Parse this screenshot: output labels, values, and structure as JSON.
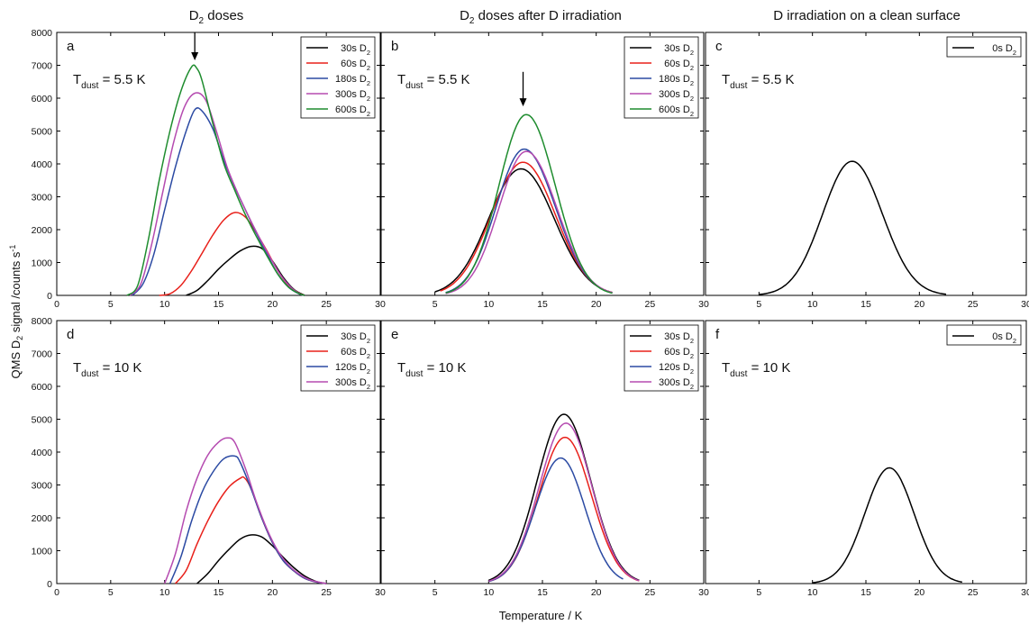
{
  "figure": {
    "xlabel": "Temperature / K",
    "ylabel": "QMS D2 signal /counts s-1",
    "column_titles": [
      "D2 doses",
      "D2 doses after D irradiation",
      "D irradiation on a clean surface"
    ],
    "colors": {
      "black": "#000000",
      "red": "#e8201a",
      "blue": "#2b4aa3",
      "magenta": "#b54bb0",
      "green": "#1e8c2e"
    }
  },
  "chart_data": [
    {
      "type": "line",
      "panel": "a",
      "annotation": "Tdust = 5.5 K",
      "xlim": [
        0,
        30
      ],
      "ylim": [
        0,
        8000
      ],
      "xticks": [
        0,
        5,
        10,
        15,
        20,
        25,
        30
      ],
      "yticks": [
        0,
        1000,
        2000,
        3000,
        4000,
        5000,
        6000,
        7000,
        8000
      ],
      "arrow_at": {
        "x": 12.8,
        "y_from": 8000,
        "y_to": 7150
      },
      "series": [
        {
          "name": "30s D2",
          "color": "#000000",
          "x": [
            12.0,
            13,
            14,
            15,
            16,
            17,
            18,
            19,
            20,
            21,
            22,
            23
          ],
          "y": [
            0,
            150,
            450,
            800,
            1100,
            1350,
            1490,
            1430,
            1050,
            550,
            180,
            0
          ]
        },
        {
          "name": "60s D2",
          "color": "#e8201a",
          "x": [
            9.5,
            10.5,
            11.5,
            12.5,
            13.5,
            14.5,
            15.5,
            16.5,
            17.5,
            18.5,
            19.5,
            20.5,
            21.5,
            22.5,
            23
          ],
          "y": [
            0,
            50,
            300,
            750,
            1300,
            1850,
            2300,
            2520,
            2380,
            1900,
            1350,
            750,
            300,
            60,
            0
          ]
        },
        {
          "name": "180s D2",
          "color": "#2b4aa3",
          "x": [
            7.0,
            8,
            9,
            10,
            11,
            12,
            12.8,
            13.5,
            14.5,
            15.5,
            16.5,
            17.5,
            18.5,
            19.5,
            20.5,
            21.5,
            22.5,
            23
          ],
          "y": [
            0,
            350,
            1250,
            2600,
            3900,
            5000,
            5650,
            5600,
            5050,
            4100,
            3300,
            2600,
            1900,
            1250,
            650,
            250,
            40,
            0
          ]
        },
        {
          "name": "300s D2",
          "color": "#b54bb0",
          "x": [
            6.8,
            7.8,
            8.8,
            9.8,
            10.8,
            11.8,
            12.8,
            13.8,
            14.8,
            15.8,
            16.8,
            17.8,
            18.8,
            19.8,
            20.8,
            21.8,
            22.6,
            23
          ],
          "y": [
            0,
            350,
            1550,
            3100,
            4600,
            5700,
            6150,
            5950,
            5000,
            3900,
            3100,
            2400,
            1750,
            1150,
            600,
            220,
            40,
            0
          ]
        },
        {
          "name": "600s D2",
          "color": "#1e8c2e",
          "x": [
            6.5,
            7.5,
            8.5,
            9.5,
            10.5,
            11.5,
            12.5,
            13.0,
            13.5,
            14.5,
            15.5,
            16.5,
            17.5,
            18.5,
            19.5,
            20.5,
            21.5,
            22.5,
            23
          ],
          "y": [
            0,
            300,
            1700,
            3500,
            5000,
            6200,
            6950,
            6900,
            6500,
            5200,
            4000,
            3200,
            2450,
            1800,
            1200,
            650,
            250,
            50,
            0
          ]
        }
      ]
    },
    {
      "type": "line",
      "panel": "b",
      "annotation": "Tdust = 5.5 K",
      "xlim": [
        0,
        30
      ],
      "ylim": [
        0,
        8000
      ],
      "xticks": [
        0,
        5,
        10,
        15,
        20,
        25,
        30
      ],
      "yticks": [
        0,
        1000,
        2000,
        3000,
        4000,
        5000,
        6000,
        7000,
        8000
      ],
      "arrow_at": {
        "x": 13.2,
        "y_from": 6800,
        "y_to": 5750
      },
      "series": [
        {
          "name": "30s D2",
          "color": "#000000",
          "peak_x": 13.0,
          "peak_y": 3850,
          "sigma_left": 3.0,
          "sigma_right": 3.1,
          "x_min": 5.0,
          "x_max": 21.5
        },
        {
          "name": "60s D2",
          "color": "#e8201a",
          "peak_x": 13.2,
          "peak_y": 4050,
          "sigma_left": 2.95,
          "sigma_right": 3.0,
          "x_min": 5.5,
          "x_max": 21.5
        },
        {
          "name": "180s D2",
          "color": "#2b4aa3",
          "peak_x": 13.3,
          "peak_y": 4450,
          "sigma_left": 2.6,
          "sigma_right": 2.9,
          "x_min": 6.0,
          "x_max": 21.5
        },
        {
          "name": "300s D2",
          "color": "#b54bb0",
          "peak_x": 13.5,
          "peak_y": 4380,
          "sigma_left": 2.55,
          "sigma_right": 2.85,
          "x_min": 6.0,
          "x_max": 21.5
        },
        {
          "name": "600s D2",
          "color": "#1e8c2e",
          "peak_x": 13.5,
          "peak_y": 5500,
          "sigma_left": 2.55,
          "sigma_right": 2.7,
          "x_min": 6.0,
          "x_max": 21.5
        }
      ]
    },
    {
      "type": "line",
      "panel": "c",
      "annotation": "Tdust = 5.5 K",
      "xlim": [
        0,
        30
      ],
      "ylim": [
        0,
        8000
      ],
      "xticks": [
        0,
        5,
        10,
        15,
        20,
        25,
        30
      ],
      "yticks": [
        0,
        1000,
        2000,
        3000,
        4000,
        5000,
        6000,
        7000,
        8000
      ],
      "series": [
        {
          "name": "0s D2",
          "color": "#000000",
          "peak_x": 13.7,
          "peak_y": 4080,
          "sigma_left": 2.75,
          "sigma_right": 2.85,
          "x_min": 5.0,
          "x_max": 22.5
        }
      ]
    },
    {
      "type": "line",
      "panel": "d",
      "annotation": "Tdust = 10 K",
      "xlim": [
        0,
        30
      ],
      "ylim": [
        0,
        8000
      ],
      "xticks": [
        0,
        5,
        10,
        15,
        20,
        25,
        30
      ],
      "yticks": [
        0,
        1000,
        2000,
        3000,
        4000,
        5000,
        6000,
        7000,
        8000
      ],
      "series": [
        {
          "name": "30s D2",
          "color": "#000000",
          "x": [
            13.0,
            14,
            15,
            16,
            17,
            18,
            19,
            20,
            21,
            22,
            23,
            24,
            25
          ],
          "y": [
            0,
            300,
            700,
            1050,
            1350,
            1480,
            1420,
            1150,
            800,
            480,
            230,
            70,
            0
          ]
        },
        {
          "name": "60s D2",
          "color": "#e8201a",
          "x": [
            11.0,
            12,
            13,
            14,
            15,
            16,
            17,
            17.4,
            18,
            19,
            20,
            21,
            22,
            23,
            24,
            25
          ],
          "y": [
            0,
            400,
            1200,
            1900,
            2500,
            2950,
            3200,
            3220,
            2900,
            2000,
            1250,
            700,
            380,
            160,
            50,
            0
          ]
        },
        {
          "name": "120s D2",
          "color": "#2b4aa3",
          "x": [
            10.5,
            11.5,
            12.5,
            13.5,
            14.5,
            15.5,
            16.5,
            17.0,
            18,
            19,
            20,
            21,
            22,
            23,
            24,
            25
          ],
          "y": [
            0,
            800,
            1900,
            2800,
            3400,
            3800,
            3880,
            3700,
            2900,
            2000,
            1250,
            700,
            380,
            160,
            50,
            0
          ]
        },
        {
          "name": "300s D2",
          "color": "#b54bb0",
          "x": [
            10.0,
            11,
            12,
            13,
            14,
            15,
            15.8,
            16.5,
            17.5,
            18.5,
            19.5,
            20.5,
            21.5,
            22.5,
            23.5,
            24.5,
            25
          ],
          "y": [
            0,
            900,
            2200,
            3200,
            3900,
            4300,
            4430,
            4300,
            3500,
            2500,
            1650,
            1000,
            560,
            280,
            110,
            30,
            0
          ]
        }
      ]
    },
    {
      "type": "line",
      "panel": "e",
      "annotation": "Tdust = 10 K",
      "xlim": [
        0,
        30
      ],
      "ylim": [
        0,
        8000
      ],
      "xticks": [
        0,
        5,
        10,
        15,
        20,
        25,
        30
      ],
      "yticks": [
        0,
        1000,
        2000,
        3000,
        4000,
        5000,
        6000,
        7000,
        8000
      ],
      "series": [
        {
          "name": "30s D2",
          "color": "#000000",
          "peak_x": 17.0,
          "peak_y": 5150,
          "sigma_left": 2.5,
          "sigma_right": 2.5,
          "x_min": 10.0,
          "x_max": 24.0
        },
        {
          "name": "60s D2",
          "color": "#e8201a",
          "peak_x": 17.1,
          "peak_y": 4450,
          "sigma_left": 2.45,
          "sigma_right": 2.45,
          "x_min": 10.0,
          "x_max": 24.0
        },
        {
          "name": "120s D2",
          "color": "#2b4aa3",
          "peak_x": 16.7,
          "peak_y": 3820,
          "sigma_left": 2.35,
          "sigma_right": 2.25,
          "x_min": 10.0,
          "x_max": 22.5
        },
        {
          "name": "300s D2",
          "color": "#b54bb0",
          "peak_x": 17.2,
          "peak_y": 4880,
          "sigma_left": 2.5,
          "sigma_right": 2.4,
          "x_min": 10.0,
          "x_max": 24.0
        }
      ]
    },
    {
      "type": "line",
      "panel": "f",
      "annotation": "Tdust = 10 K",
      "xlim": [
        0,
        30
      ],
      "ylim": [
        0,
        8000
      ],
      "xticks": [
        0,
        5,
        10,
        15,
        20,
        25,
        30
      ],
      "yticks": [
        0,
        1000,
        2000,
        3000,
        4000,
        5000,
        6000,
        7000,
        8000
      ],
      "series": [
        {
          "name": "0s D2",
          "color": "#000000",
          "peak_x": 17.2,
          "peak_y": 3520,
          "sigma_left": 2.3,
          "sigma_right": 2.3,
          "x_min": 10.0,
          "x_max": 24.0
        }
      ]
    }
  ]
}
